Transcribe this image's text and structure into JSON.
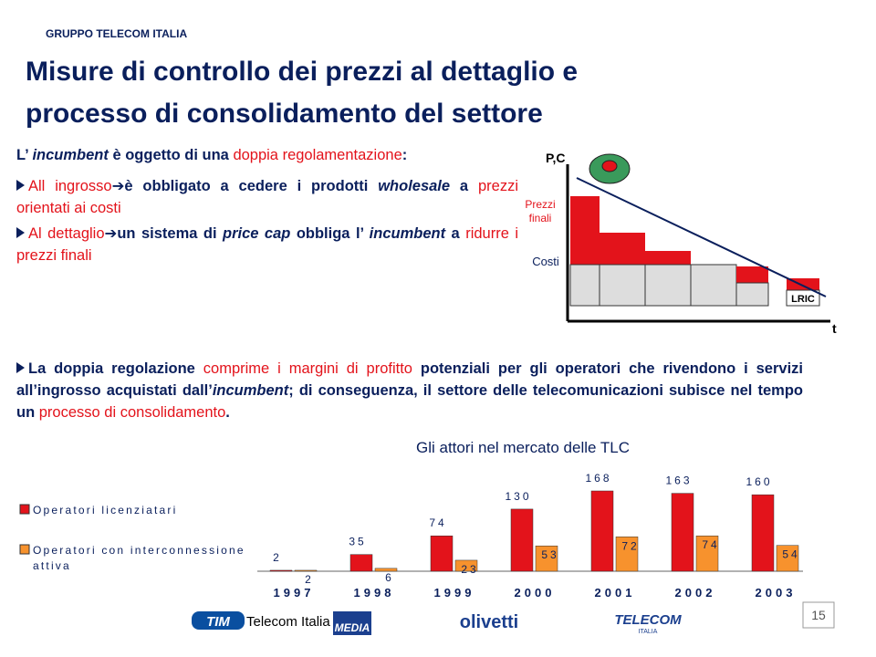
{
  "header": {
    "group": "GRUPPO TELECOM ITALIA"
  },
  "title": {
    "lines": [
      "Misure di controllo dei prezzi al dettaglio e",
      "processo di consolidamento del settore"
    ]
  },
  "intro": {
    "runs": [
      {
        "text": "L’ ",
        "style": "bold"
      },
      {
        "text": "incumbent",
        "style": "bold-italic"
      },
      {
        "text": " è oggetto di una ",
        "style": "bold"
      },
      {
        "text": "doppia regolamentazione",
        "style": "red"
      },
      {
        "text": ":",
        "style": "bold"
      }
    ]
  },
  "bullets": [
    {
      "runs": [
        {
          "text": "All ingrosso",
          "style": "red"
        },
        {
          "text": "➔",
          "style": "bold"
        },
        {
          "text": "è obbligato a cedere i prodotti ",
          "style": "bold"
        },
        {
          "text": "wholesale",
          "style": "bold-italic"
        },
        {
          "text": " a ",
          "style": "bold"
        },
        {
          "text": "prezzi orientati ai costi",
          "style": "red"
        }
      ]
    },
    {
      "runs": [
        {
          "text": "Al dettaglio",
          "style": "red"
        },
        {
          "text": "➔",
          "style": "bold"
        },
        {
          "text": "un sistema di ",
          "style": "bold"
        },
        {
          "text": "price cap",
          "style": "bold-italic"
        },
        {
          "text": " obbliga l’ ",
          "style": "bold"
        },
        {
          "text": "incumbent",
          "style": "bold-italic"
        },
        {
          "text": " a ",
          "style": "bold"
        },
        {
          "text": "ridurre i prezzi finali",
          "style": "red"
        }
      ]
    }
  ],
  "diagram": {
    "y_axis": "P,C",
    "prices": "Prezzi finali",
    "costs": "Costi",
    "lric": "LRIC",
    "x_axis": "t"
  },
  "paragraph": {
    "runs": [
      {
        "text": "La doppia regolazione",
        "style": "bold"
      },
      {
        "text": " comprime i margini di profitto",
        "style": "red"
      },
      {
        "text": " potenziali per gli operatori che rivendono i servizi all’ingrosso acquistati dall’",
        "style": "bold"
      },
      {
        "text": "incumbent",
        "style": "bold-italic"
      },
      {
        "text": "; di conseguenza, il settore delle telecomunicazioni subisce nel tempo un",
        "style": "bold"
      },
      {
        "text": " processo di consolidamento",
        "style": "red"
      },
      {
        "text": ".",
        "style": "bold"
      }
    ]
  },
  "chart_data": {
    "type": "bar",
    "title": "Gli attori nel mercato delle TLC",
    "categories": [
      "1997",
      "1998",
      "1999",
      "2000",
      "2001",
      "2002",
      "2003"
    ],
    "series": [
      {
        "name": "Operatori licenziatari",
        "color": "#e3131b",
        "values": [
          2,
          35,
          74,
          130,
          168,
          163,
          160
        ]
      },
      {
        "name": "Operatori con interconnessione attiva",
        "color": "#f7922d",
        "values": [
          2,
          6,
          23,
          53,
          72,
          74,
          54
        ]
      }
    ]
  },
  "footer": {
    "tim": "TIM",
    "telecom_italia": "Telecom Italia",
    "media": "MEDIA",
    "olivetti": "olivetti",
    "telecom": "TELECOM",
    "italia": "ITALIA",
    "page": "15"
  }
}
